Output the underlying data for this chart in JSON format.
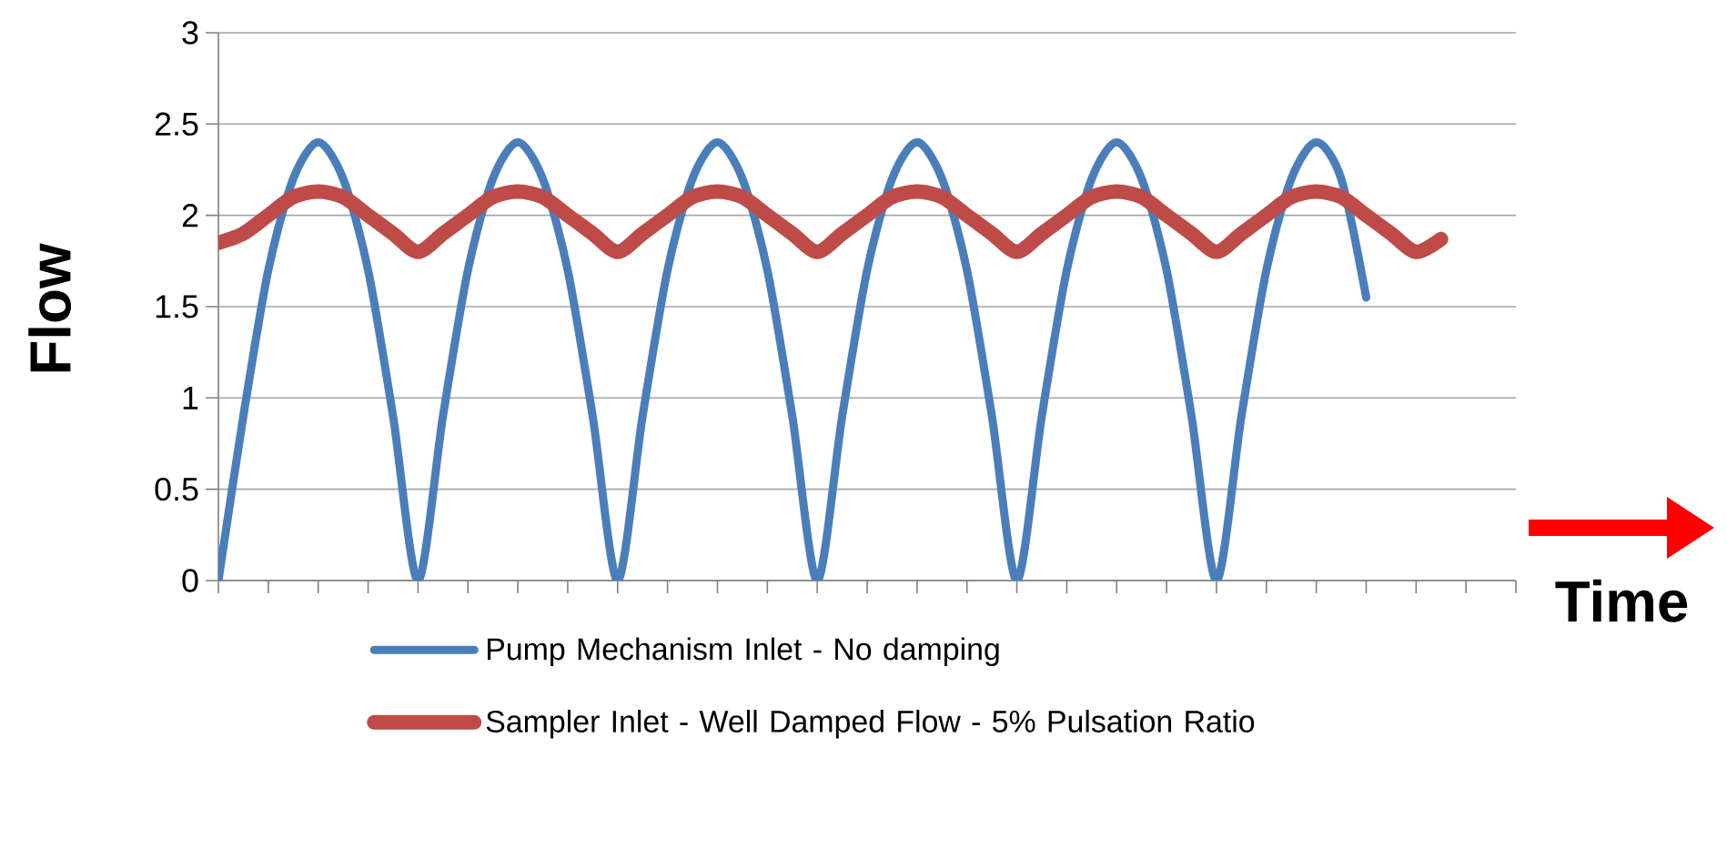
{
  "chart_data": {
    "type": "line",
    "xlabel": "Time",
    "ylabel": "Flow",
    "categories": [
      null,
      null,
      null,
      null,
      null,
      null,
      null,
      null,
      null,
      null,
      null,
      null,
      null,
      null,
      null,
      null,
      null,
      null,
      null,
      null,
      null,
      null,
      null,
      null,
      null,
      null,
      null,
      null,
      null,
      null,
      null,
      null,
      null,
      null,
      null,
      null,
      null,
      null,
      null,
      null,
      null,
      null,
      null,
      null,
      null,
      null,
      null,
      null,
      null,
      null,
      null,
      null,
      null
    ],
    "series": [
      {
        "name": "Pump Mechanism Inlet - No damping",
        "color": "#4a7ebb",
        "values": [
          0,
          0.9,
          1.7,
          2.2,
          2.4,
          2.2,
          1.7,
          0.9,
          0,
          0.9,
          1.7,
          2.2,
          2.4,
          2.2,
          1.7,
          0.9,
          0,
          0.9,
          1.7,
          2.2,
          2.4,
          2.2,
          1.7,
          0.9,
          0,
          0.9,
          1.7,
          2.2,
          2.4,
          2.2,
          1.7,
          0.9,
          0,
          0.9,
          1.7,
          2.2,
          2.4,
          2.2,
          1.7,
          0.9,
          0,
          0.9,
          1.7,
          2.2,
          2.4,
          2.2,
          1.55,
          null,
          null,
          null,
          null,
          null,
          null
        ]
      },
      {
        "name": "Sampler Inlet - Well Damped Flow - 5% Pulsation Ratio",
        "color": "#be4b48",
        "values": [
          1.85,
          1.9,
          2.0,
          2.1,
          2.13,
          2.1,
          2.0,
          1.9,
          1.8,
          1.9,
          2.0,
          2.1,
          2.13,
          2.1,
          2.0,
          1.9,
          1.8,
          1.9,
          2.0,
          2.1,
          2.13,
          2.1,
          2.0,
          1.9,
          1.8,
          1.9,
          2.0,
          2.1,
          2.13,
          2.1,
          2.0,
          1.9,
          1.8,
          1.9,
          2.0,
          2.1,
          2.13,
          2.1,
          2.0,
          1.9,
          1.8,
          1.9,
          2.0,
          2.1,
          2.13,
          2.1,
          2.0,
          1.9,
          1.8,
          1.87,
          null,
          null,
          null
        ]
      }
    ],
    "ylim": [
      0,
      3
    ],
    "yticks": [
      0,
      0.5,
      1,
      1.5,
      2,
      2.5,
      3
    ],
    "grid": "y",
    "legend": "bottom",
    "tick_labels": "y",
    "marker": "none",
    "line_style": "solid"
  }
}
